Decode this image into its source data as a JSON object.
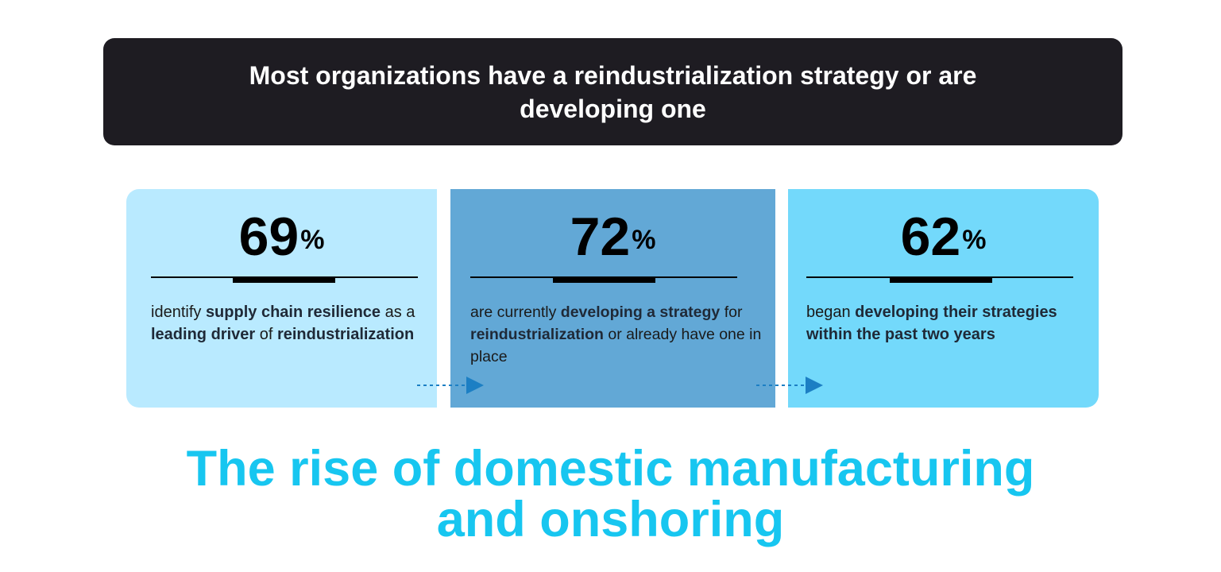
{
  "banner": {
    "title": "Most organizations have a reindustrialization strategy or are developing one"
  },
  "cards": [
    {
      "value": "69",
      "unit": "%",
      "description": [
        {
          "text": "identify ",
          "highlight": false
        },
        {
          "text": "supply chain resilience",
          "highlight": true
        },
        {
          "text": " as a ",
          "highlight": false
        },
        {
          "text": "leading driver",
          "highlight": true
        },
        {
          "text": " of ",
          "highlight": false
        },
        {
          "text": "reindustrialization",
          "highlight": true
        }
      ]
    },
    {
      "value": "72",
      "unit": "%",
      "description": [
        {
          "text": "are currently ",
          "highlight": false
        },
        {
          "text": "developing a strategy",
          "highlight": true
        },
        {
          "text": " for ",
          "highlight": false
        },
        {
          "text": "reindustrialization",
          "highlight": true
        },
        {
          "text": " or already have one in place",
          "highlight": false
        }
      ]
    },
    {
      "value": "62",
      "unit": "%",
      "description": [
        {
          "text": "began ",
          "highlight": false
        },
        {
          "text": "developing their strategies within the past two years",
          "highlight": true
        }
      ]
    }
  ],
  "headline": {
    "line1": "The rise of domestic manufacturing",
    "line2": "and onshoring"
  },
  "colors": {
    "banner_bg": "#1e1c22",
    "card1_bg": "#b9eaff",
    "card2_bg": "#62a8d6",
    "card3_bg": "#73d9fb",
    "headline": "#17c6f0",
    "arrow": "#1c7fc4"
  }
}
